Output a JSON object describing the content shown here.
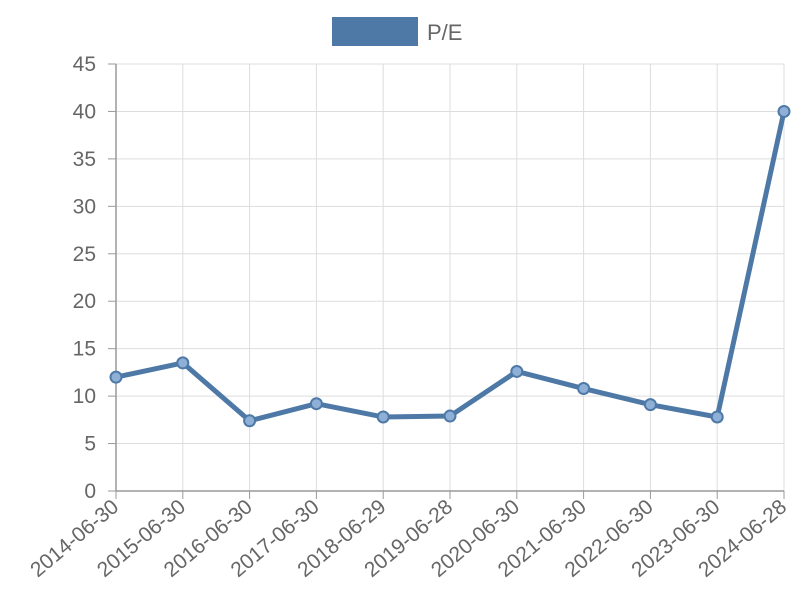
{
  "chart_data": {
    "type": "line",
    "categories": [
      "2014-06-30",
      "2015-06-30",
      "2016-06-30",
      "2017-06-30",
      "2018-06-29",
      "2019-06-28",
      "2020-06-30",
      "2021-06-30",
      "2022-06-30",
      "2023-06-30",
      "2024-06-28"
    ],
    "series": [
      {
        "name": "P/E",
        "values": [
          12.0,
          13.5,
          7.4,
          9.2,
          7.8,
          7.9,
          12.6,
          10.8,
          9.1,
          7.8,
          40.0
        ],
        "color": "#4e79a7"
      }
    ],
    "ylim": [
      0,
      45
    ],
    "yticks": [
      0,
      5,
      10,
      15,
      20,
      25,
      30,
      35,
      40,
      45
    ],
    "grid": true,
    "legend": "top-center",
    "point_fill": "#8fb0d6",
    "grid_color": "#dddddd",
    "axis_color": "#999999"
  }
}
